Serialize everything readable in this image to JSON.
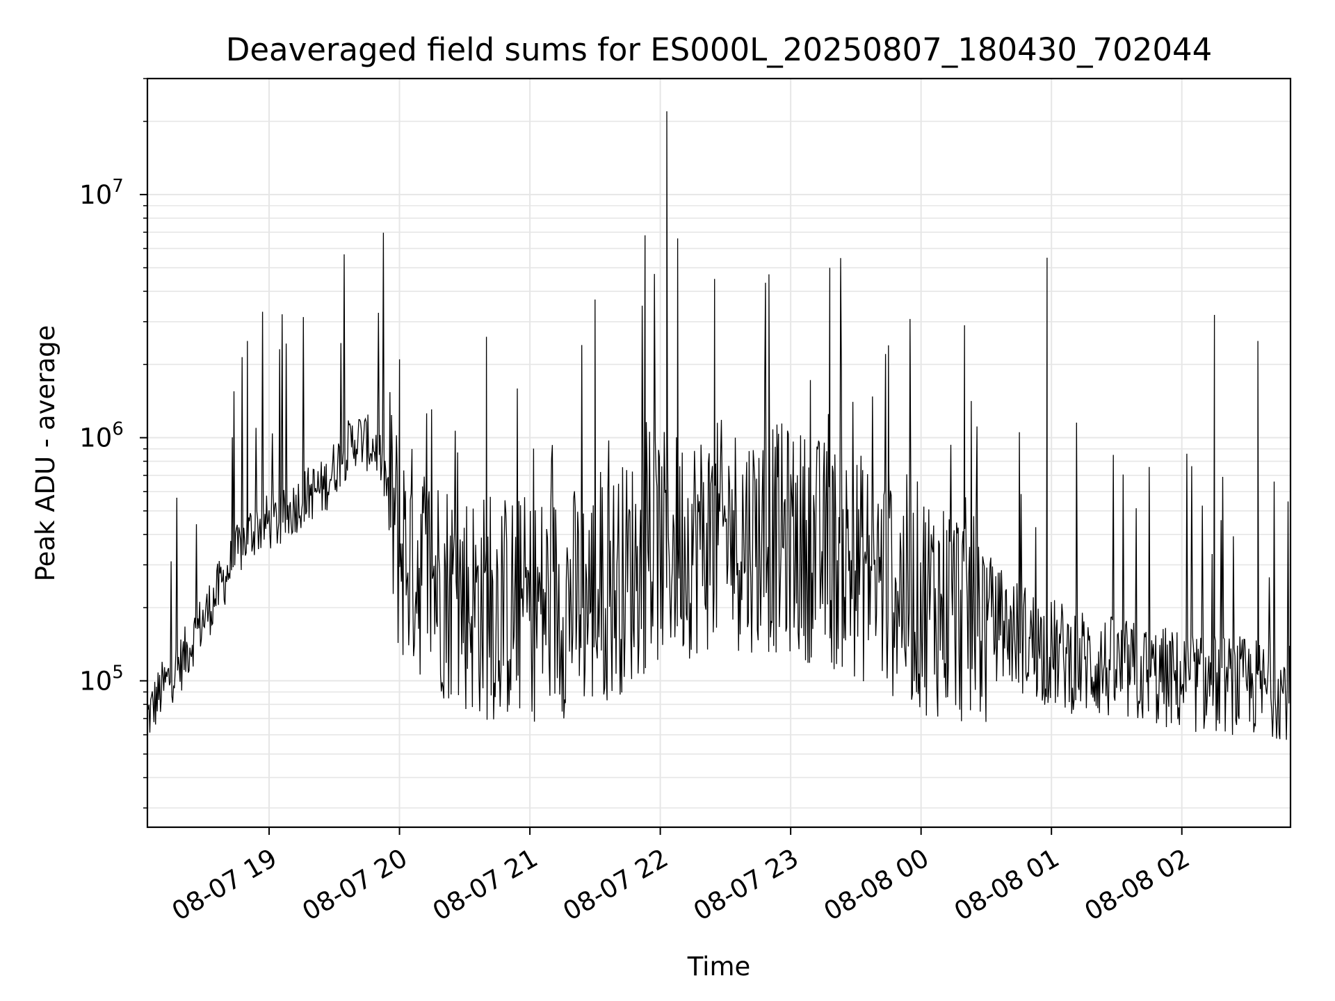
{
  "chart_data": {
    "type": "line",
    "title": "Deaveraged field sums for ES000L_20250807_180430_702044",
    "xlabel": "Time",
    "ylabel": "Peak ADU - average",
    "yscale": "log",
    "ylim": [
      25000,
      30000000
    ],
    "xlim": [
      "2025-08-07 18:04",
      "2025-08-08 02:50"
    ],
    "grid": true,
    "line_color": "#000000",
    "grid_color": "#e6e6e6",
    "x_ticks": [
      {
        "t": "2025-08-07 19:00",
        "label": "08-07 19"
      },
      {
        "t": "2025-08-07 20:00",
        "label": "08-07 20"
      },
      {
        "t": "2025-08-07 21:00",
        "label": "08-07 21"
      },
      {
        "t": "2025-08-07 22:00",
        "label": "08-07 22"
      },
      {
        "t": "2025-08-07 23:00",
        "label": "08-07 23"
      },
      {
        "t": "2025-08-08 00:00",
        "label": "08-08 00"
      },
      {
        "t": "2025-08-08 01:00",
        "label": "08-08 01"
      },
      {
        "t": "2025-08-08 02:00",
        "label": "08-08 02"
      }
    ],
    "y_ticks": [
      {
        "value": 100000,
        "base": "10",
        "exp": "5"
      },
      {
        "value": 1000000,
        "base": "10",
        "exp": "6"
      },
      {
        "value": 10000000,
        "base": "10",
        "exp": "7"
      }
    ],
    "series": [
      {
        "points": [
          [
            "2025-08-07 18:04",
            70000
          ],
          [
            "2025-08-07 18:10",
            90000
          ],
          [
            "2025-08-07 18:15",
            105000
          ],
          [
            "2025-08-07 18:20",
            120000
          ],
          [
            "2025-08-07 18:25",
            150000
          ],
          [
            "2025-08-07 18:30",
            180000
          ],
          [
            "2025-08-07 18:35",
            220000
          ],
          [
            "2025-08-07 18:40",
            270000
          ],
          [
            "2025-08-07 18:45",
            330000
          ],
          [
            "2025-08-07 18:50",
            400000
          ],
          [
            "2025-08-07 18:55",
            430000
          ],
          [
            "2025-08-07 19:00",
            450000
          ],
          [
            "2025-08-07 19:05",
            450000
          ],
          [
            "2025-08-07 19:10",
            500000
          ],
          [
            "2025-08-07 19:15",
            560000
          ],
          [
            "2025-08-07 19:20",
            600000
          ],
          [
            "2025-08-07 19:25",
            620000
          ],
          [
            "2025-08-07 19:30",
            750000
          ],
          [
            "2025-08-07 19:35",
            870000
          ],
          [
            "2025-08-07 19:40",
            1000000
          ],
          [
            "2025-08-07 19:45",
            950000
          ],
          [
            "2025-08-07 19:50",
            900000
          ],
          [
            "2025-08-07 19:55",
            600000
          ],
          [
            "2025-08-07 20:00",
            350000
          ],
          [
            "2025-08-07 20:10",
            300000
          ],
          [
            "2025-08-07 20:20",
            250000
          ],
          [
            "2025-08-07 20:30",
            220000
          ],
          [
            "2025-08-07 20:40",
            200000
          ],
          [
            "2025-08-07 21:00",
            200000
          ],
          [
            "2025-08-07 21:30",
            220000
          ],
          [
            "2025-08-07 22:00",
            350000
          ],
          [
            "2025-08-07 22:30",
            400000
          ],
          [
            "2025-08-07 23:00",
            380000
          ],
          [
            "2025-08-07 23:30",
            300000
          ],
          [
            "2025-08-08 00:00",
            220000
          ],
          [
            "2025-08-08 00:30",
            180000
          ],
          [
            "2025-08-08 01:00",
            130000
          ],
          [
            "2025-08-08 01:30",
            110000
          ],
          [
            "2025-08-08 02:00",
            100000
          ],
          [
            "2025-08-08 02:30",
            95000
          ],
          [
            "2025-08-08 02:50",
            90000
          ]
        ],
        "spikes": [
          [
            "2025-08-07 21:53",
            6800000
          ],
          [
            "2025-08-07 22:03",
            22000000
          ],
          [
            "2025-08-07 22:08",
            6600000
          ],
          [
            "2025-08-07 22:25",
            4500000
          ],
          [
            "2025-08-07 22:50",
            4700000
          ],
          [
            "2025-08-07 23:18",
            5000000
          ],
          [
            "2025-08-08 00:58",
            5500000
          ],
          [
            "2025-08-08 02:15",
            3200000
          ],
          [
            "2025-08-07 20:00",
            2100000
          ],
          [
            "2025-08-07 20:40",
            2600000
          ],
          [
            "2025-08-07 21:30",
            3700000
          ],
          [
            "2025-08-07 23:45",
            2400000
          ],
          [
            "2025-08-08 00:20",
            2900000
          ],
          [
            "2025-08-08 02:35",
            2500000
          ],
          [
            "2025-08-07 18:50",
            2500000
          ]
        ]
      }
    ]
  }
}
